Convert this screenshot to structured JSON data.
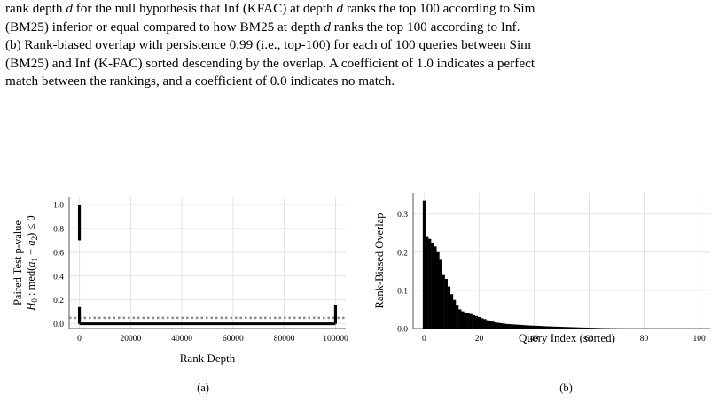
{
  "caption": {
    "lines": [
      "rank depth d for the null hypothesis that Inf (KFAC) at depth d ranks the top 100 according to Sim",
      "(BM25) inferior or equal compared to how BM25 at depth d ranks the top 100 according to Inf.",
      "(b) Rank-biased overlap with persistence 0.99 (i.e., top-100) for each of 100 queries between Sim",
      "(BM25) and Inf (K-FAC) sorted descending by the overlap. A coefficient of 1.0 indicates a perfect",
      "match between the rankings, and a coefficient of 0.0 indicates no match."
    ]
  },
  "chart_data": [
    {
      "type": "line",
      "panel_label": "(a)",
      "ylabel": "Paired Test p-value",
      "ylabel2": "H0 : med(a1 − a2) ≤ 0",
      "xlabel": "Rank Depth",
      "xticks": [
        0,
        20000,
        40000,
        60000,
        80000,
        100000
      ],
      "xtick_labels": [
        "0",
        "20000",
        "40000",
        "60000",
        "80000",
        "100000"
      ],
      "yticks": [
        0.0,
        0.2,
        0.4,
        0.6,
        0.8,
        1.0
      ],
      "ytick_labels": [
        "0.0",
        "0.2",
        "0.4",
        "0.6",
        "0.8",
        "1.0"
      ],
      "xlim": [
        -4000,
        104000
      ],
      "ylim": [
        -0.04,
        1.06
      ],
      "grid": true,
      "reference_line": {
        "y": 0.05,
        "style": "dotted",
        "color": "#8c8c8c"
      },
      "series": [
        {
          "x": [
            0,
            0,
            0,
            0,
            0,
            0,
            0,
            0,
            0,
            0,
            100000,
            100000,
            100000
          ],
          "y": [
            1.0,
            0.95,
            0.9,
            0.85,
            0.8,
            0.75,
            0.7,
            0.14,
            0.0,
            0.0,
            0.0,
            0.0,
            0.16
          ],
          "color": "#000000"
        }
      ]
    },
    {
      "type": "bar",
      "panel_label": "(b)",
      "ylabel": "Rank-Biased Overlap",
      "xlabel": "Query Index (sorted)",
      "xticks": [
        0,
        20,
        40,
        60,
        80,
        100
      ],
      "xtick_labels": [
        "0",
        "20",
        "40",
        "60",
        "80",
        "100"
      ],
      "yticks": [
        0.0,
        0.1,
        0.2,
        0.3
      ],
      "ytick_labels": [
        "0.0",
        "0.1",
        "0.2",
        "0.3"
      ],
      "xlim": [
        -4,
        104
      ],
      "ylim": [
        0,
        0.355
      ],
      "grid": true,
      "bar_color": "#000000",
      "x": [
        0,
        1,
        2,
        3,
        4,
        5,
        6,
        7,
        8,
        9,
        10,
        11,
        12,
        13,
        14,
        15,
        16,
        17,
        18,
        19,
        20,
        21,
        22,
        23,
        24,
        25,
        26,
        27,
        28,
        29,
        30,
        31,
        32,
        33,
        34,
        35,
        36,
        37,
        38,
        39,
        40,
        41,
        42,
        43,
        44,
        45,
        46,
        47,
        48,
        49,
        50,
        51,
        52,
        53,
        54,
        55,
        56,
        57,
        58,
        59,
        60,
        61,
        62,
        63,
        64,
        65,
        66,
        67,
        68,
        69,
        70,
        71,
        72,
        73,
        74,
        75,
        76,
        77,
        78,
        79,
        80,
        81,
        82,
        83,
        84,
        85,
        86,
        87,
        88,
        89,
        90,
        91,
        92,
        93,
        94,
        95,
        96,
        97,
        98,
        99
      ],
      "values": [
        0.335,
        0.24,
        0.235,
        0.225,
        0.215,
        0.2,
        0.18,
        0.14,
        0.13,
        0.11,
        0.09,
        0.075,
        0.06,
        0.05,
        0.045,
        0.042,
        0.04,
        0.038,
        0.035,
        0.033,
        0.03,
        0.027,
        0.025,
        0.022,
        0.02,
        0.018,
        0.016,
        0.015,
        0.014,
        0.013,
        0.012,
        0.0115,
        0.011,
        0.0105,
        0.01,
        0.0095,
        0.009,
        0.0085,
        0.008,
        0.0078,
        0.0075,
        0.0072,
        0.007,
        0.0065,
        0.006,
        0.0058,
        0.0055,
        0.0052,
        0.005,
        0.0048,
        0.0045,
        0.0042,
        0.004,
        0.0038,
        0.0035,
        0.0033,
        0.003,
        0.0028,
        0.0026,
        0.0024,
        0.0022,
        0.002,
        0.0018,
        0.0016,
        0.0014,
        0.0012,
        0.001,
        0.0008,
        0.0006,
        0.0004,
        0.0002,
        0.0001,
        0,
        0,
        0,
        0,
        0,
        0,
        0,
        0,
        0,
        0,
        0,
        0,
        0,
        0,
        0,
        0,
        0,
        0,
        0,
        0,
        0,
        0,
        0,
        0,
        0,
        0,
        0,
        0
      ]
    }
  ]
}
